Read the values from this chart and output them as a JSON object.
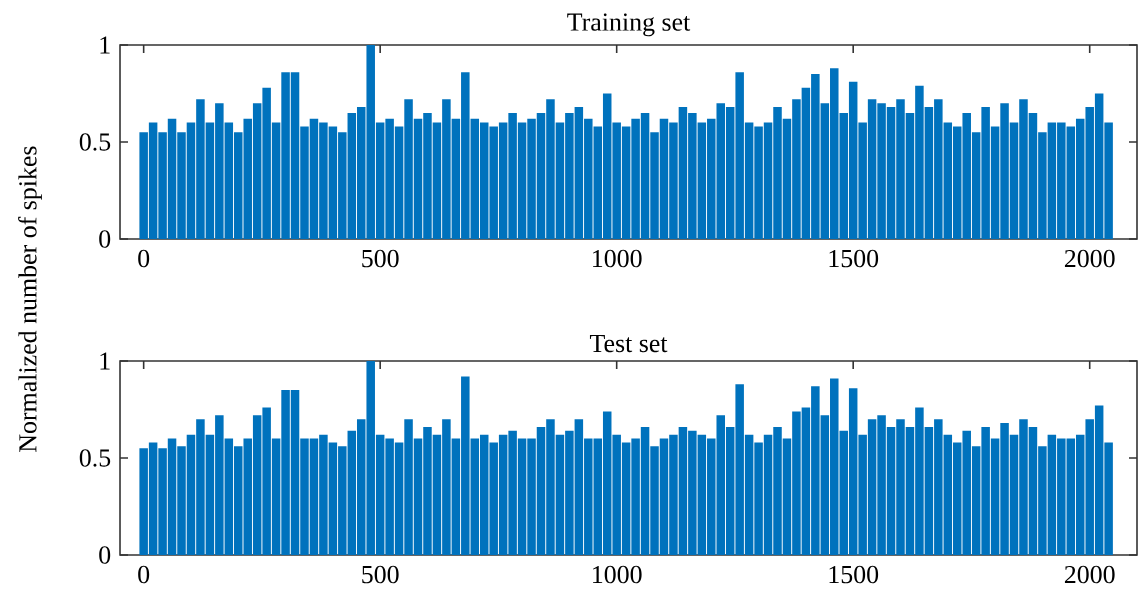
{
  "chart_data": [
    {
      "type": "bar",
      "title": "Training set",
      "ylabel": "Normalized number of spikes",
      "color": "#0072bd",
      "x": [
        0,
        20,
        40,
        60,
        80,
        100,
        120,
        140,
        160,
        180,
        200,
        220,
        240,
        260,
        280,
        300,
        320,
        340,
        360,
        380,
        400,
        420,
        440,
        460,
        480,
        500,
        520,
        540,
        560,
        580,
        600,
        620,
        640,
        660,
        680,
        700,
        720,
        740,
        760,
        780,
        800,
        820,
        840,
        860,
        880,
        900,
        920,
        940,
        960,
        980,
        1000,
        1020,
        1040,
        1060,
        1080,
        1100,
        1120,
        1140,
        1160,
        1180,
        1200,
        1220,
        1240,
        1260,
        1280,
        1300,
        1320,
        1340,
        1360,
        1380,
        1400,
        1420,
        1440,
        1460,
        1480,
        1500,
        1520,
        1540,
        1560,
        1580,
        1600,
        1620,
        1640,
        1660,
        1680,
        1700,
        1720,
        1740,
        1760,
        1780,
        1800,
        1820,
        1840,
        1860,
        1880,
        1900,
        1920,
        1940,
        1960,
        1980,
        2000,
        2020,
        2040
      ],
      "values": [
        0.55,
        0.6,
        0.55,
        0.62,
        0.55,
        0.6,
        0.72,
        0.6,
        0.7,
        0.6,
        0.55,
        0.62,
        0.7,
        0.78,
        0.6,
        0.86,
        0.86,
        0.58,
        0.62,
        0.6,
        0.58,
        0.55,
        0.65,
        0.68,
        1.0,
        0.6,
        0.62,
        0.58,
        0.72,
        0.62,
        0.65,
        0.6,
        0.72,
        0.62,
        0.86,
        0.62,
        0.6,
        0.58,
        0.6,
        0.65,
        0.6,
        0.62,
        0.65,
        0.72,
        0.6,
        0.65,
        0.68,
        0.62,
        0.58,
        0.75,
        0.6,
        0.58,
        0.62,
        0.65,
        0.55,
        0.62,
        0.6,
        0.68,
        0.65,
        0.6,
        0.62,
        0.7,
        0.68,
        0.86,
        0.6,
        0.58,
        0.6,
        0.68,
        0.62,
        0.72,
        0.78,
        0.85,
        0.7,
        0.88,
        0.65,
        0.81,
        0.6,
        0.72,
        0.7,
        0.68,
        0.72,
        0.65,
        0.79,
        0.68,
        0.72,
        0.6,
        0.58,
        0.65,
        0.55,
        0.68,
        0.58,
        0.7,
        0.6,
        0.72,
        0.65,
        0.55,
        0.6,
        0.6,
        0.58,
        0.62,
        0.68,
        0.75,
        0.6
      ],
      "xlim": [
        -50,
        2100
      ],
      "ylim": [
        0,
        1
      ],
      "xticks": [
        0,
        500,
        1000,
        1500,
        2000
      ],
      "yticks": [
        0,
        0.5,
        1
      ],
      "grid": false
    },
    {
      "type": "bar",
      "title": "Test set",
      "color": "#0072bd",
      "x": [
        0,
        20,
        40,
        60,
        80,
        100,
        120,
        140,
        160,
        180,
        200,
        220,
        240,
        260,
        280,
        300,
        320,
        340,
        360,
        380,
        400,
        420,
        440,
        460,
        480,
        500,
        520,
        540,
        560,
        580,
        600,
        620,
        640,
        660,
        680,
        700,
        720,
        740,
        760,
        780,
        800,
        820,
        840,
        860,
        880,
        900,
        920,
        940,
        960,
        980,
        1000,
        1020,
        1040,
        1060,
        1080,
        1100,
        1120,
        1140,
        1160,
        1180,
        1200,
        1220,
        1240,
        1260,
        1280,
        1300,
        1320,
        1340,
        1360,
        1380,
        1400,
        1420,
        1440,
        1460,
        1480,
        1500,
        1520,
        1540,
        1560,
        1580,
        1600,
        1620,
        1640,
        1660,
        1680,
        1700,
        1720,
        1740,
        1760,
        1780,
        1800,
        1820,
        1840,
        1860,
        1880,
        1900,
        1920,
        1940,
        1960,
        1980,
        2000,
        2020,
        2040
      ],
      "values": [
        0.55,
        0.58,
        0.55,
        0.6,
        0.56,
        0.62,
        0.7,
        0.62,
        0.72,
        0.6,
        0.56,
        0.6,
        0.72,
        0.76,
        0.6,
        0.85,
        0.85,
        0.6,
        0.6,
        0.62,
        0.58,
        0.56,
        0.64,
        0.7,
        1.0,
        0.62,
        0.6,
        0.58,
        0.7,
        0.6,
        0.66,
        0.62,
        0.7,
        0.6,
        0.92,
        0.6,
        0.62,
        0.58,
        0.62,
        0.64,
        0.6,
        0.6,
        0.66,
        0.7,
        0.62,
        0.64,
        0.7,
        0.6,
        0.6,
        0.74,
        0.62,
        0.58,
        0.6,
        0.66,
        0.56,
        0.6,
        0.62,
        0.66,
        0.64,
        0.62,
        0.6,
        0.72,
        0.66,
        0.88,
        0.62,
        0.58,
        0.62,
        0.66,
        0.6,
        0.74,
        0.76,
        0.87,
        0.72,
        0.91,
        0.64,
        0.86,
        0.62,
        0.7,
        0.72,
        0.66,
        0.7,
        0.66,
        0.76,
        0.66,
        0.7,
        0.62,
        0.58,
        0.64,
        0.56,
        0.66,
        0.6,
        0.68,
        0.62,
        0.7,
        0.66,
        0.56,
        0.62,
        0.6,
        0.6,
        0.62,
        0.7,
        0.77,
        0.58
      ],
      "xlim": [
        -50,
        2100
      ],
      "ylim": [
        0,
        1
      ],
      "xticks": [
        0,
        500,
        1000,
        1500,
        2000
      ],
      "yticks": [
        0,
        0.5,
        1
      ],
      "grid": false
    }
  ]
}
